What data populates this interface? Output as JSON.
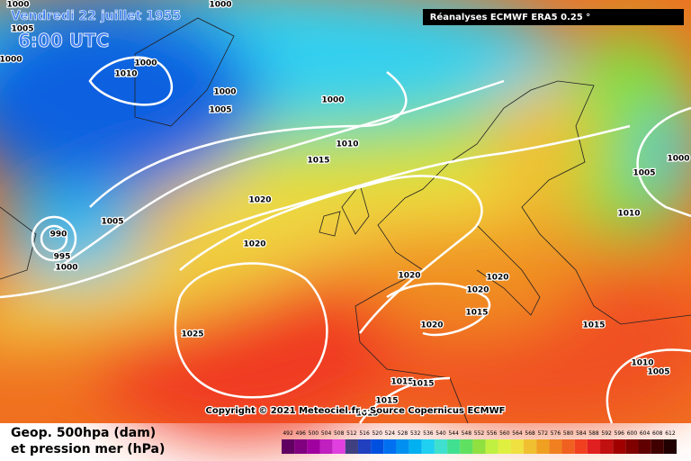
{
  "header": {
    "date": "Vendredi 22 juillet 1955",
    "time": "6:00 UTC",
    "source": "Réanalyses ECMWF ERA5 0.25 °",
    "copyright": "Copyright © 2021 Meteociel.fr - Source Copernicus ECMWF"
  },
  "legend": {
    "title": "Geop. 500hpa (dam)",
    "subtitle": "et pression mer (hPa)",
    "values": [
      492,
      496,
      500,
      504,
      508,
      512,
      516,
      520,
      524,
      528,
      532,
      536,
      540,
      544,
      548,
      552,
      556,
      560,
      564,
      568,
      572,
      576,
      580,
      584,
      588,
      592,
      596,
      600,
      604,
      608,
      612
    ],
    "colors": [
      "#600060",
      "#800080",
      "#a000a0",
      "#c020c0",
      "#e040e0",
      "#404080",
      "#2040c0",
      "#0050e0",
      "#0070f0",
      "#0090f0",
      "#00b0f0",
      "#20d0f0",
      "#40e0d0",
      "#40e090",
      "#60e060",
      "#90e040",
      "#c0f040",
      "#e0f040",
      "#f0e040",
      "#f0c030",
      "#f0a020",
      "#f08020",
      "#f06020",
      "#f04020",
      "#e02020",
      "#c01010",
      "#a00000",
      "#800000",
      "#600000",
      "#400000",
      "#200000"
    ]
  },
  "isobar_labels": [
    1000,
    1000,
    1005,
    1000,
    1000,
    1010,
    1000,
    1000,
    1005,
    1010,
    1015,
    1005,
    1000,
    1020,
    1005,
    1010,
    990,
    1020,
    995,
    1000,
    1020,
    1020,
    1020,
    1015,
    1020,
    1015,
    1025,
    1010,
    1005,
    1015,
    1015,
    1015,
    1015
  ]
}
